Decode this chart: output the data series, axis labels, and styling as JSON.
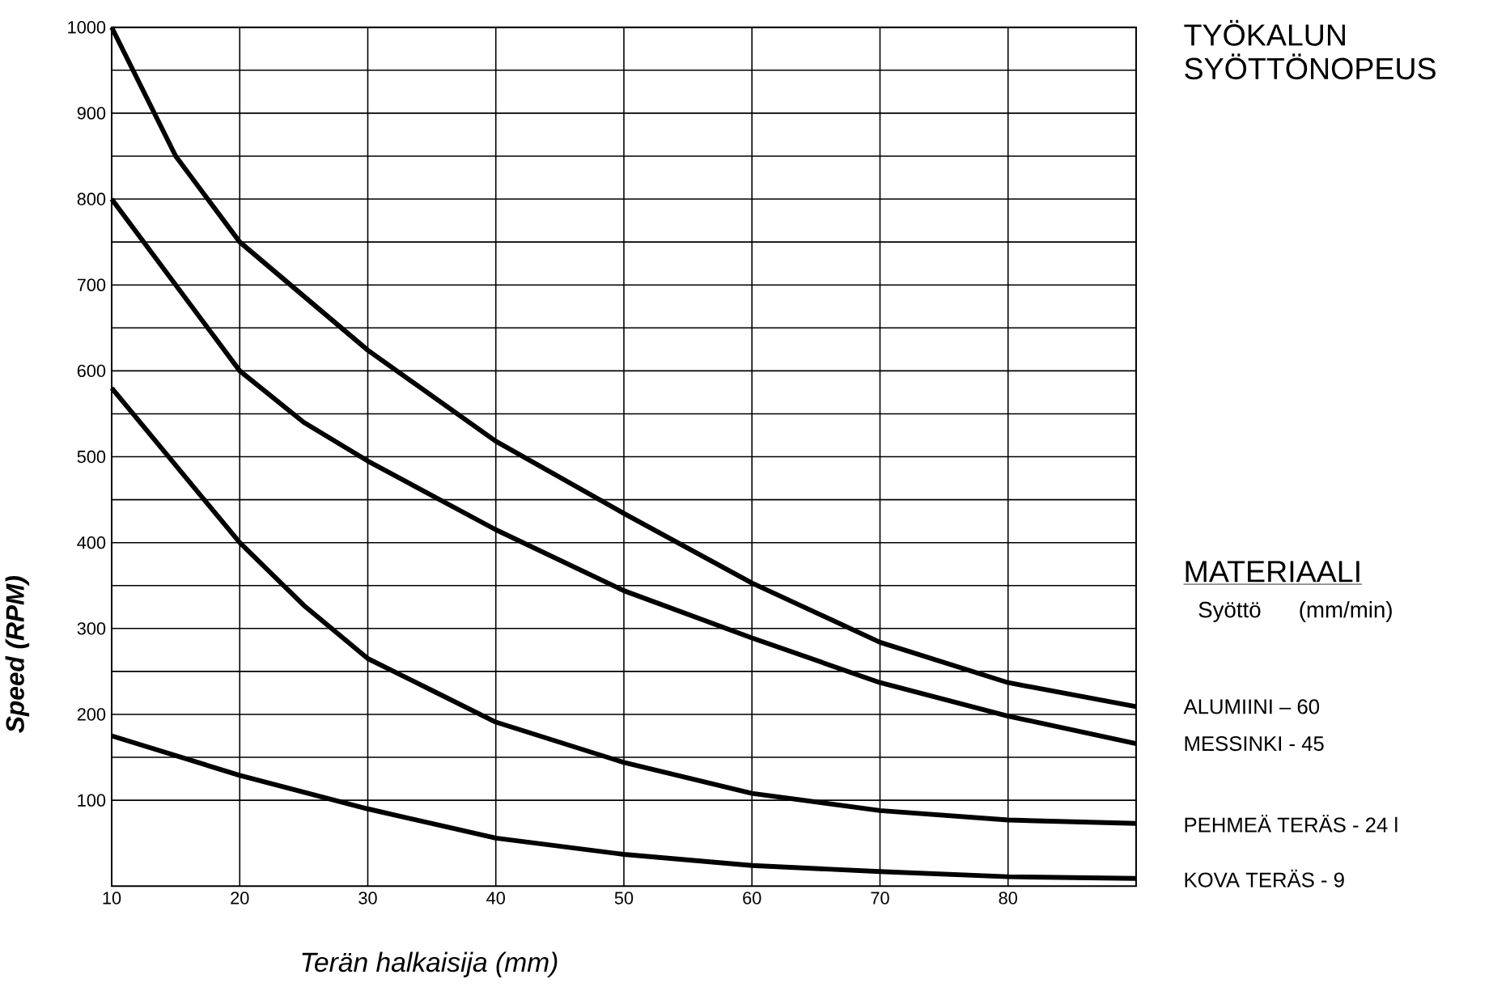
{
  "chart_data": {
    "type": "line",
    "title": "TYÖKALUN SYÖTTÖNOPEUS",
    "legend_title": "MATERIAALI",
    "annotations": [
      "Syöttö      (mm/min)"
    ],
    "xlabel": "Terän halkaisija (mm)",
    "ylabel": "Speed (RPM)",
    "xlim": [
      10,
      90
    ],
    "xticks": [
      10,
      20,
      30,
      40,
      50,
      60,
      70,
      80
    ],
    "ylim": [
      0,
      1000
    ],
    "yticks": [
      100,
      200,
      300,
      400,
      500,
      600,
      700,
      800,
      900,
      1000
    ],
    "grid": true,
    "series": [
      {
        "name": "ALUMIINI – 60",
        "color": "#000000",
        "x": [
          10,
          15,
          20,
          30,
          40,
          50,
          60,
          70,
          80,
          90
        ],
        "values": [
          1000,
          850,
          750,
          624,
          518,
          434,
          353,
          284,
          237,
          209
        ]
      },
      {
        "name": "MESSINKI - 45",
        "color": "#000000",
        "x": [
          10,
          15,
          20,
          25,
          30,
          40,
          50,
          60,
          70,
          80,
          90
        ],
        "values": [
          800,
          700,
          600,
          540,
          495,
          415,
          344,
          289,
          237,
          198,
          166
        ]
      },
      {
        "name": "PEHMEÄ TERÄS - 24 l",
        "color": "#000000",
        "x": [
          10,
          15,
          20,
          25,
          30,
          35,
          40,
          50,
          60,
          70,
          80,
          90
        ],
        "values": [
          580,
          490,
          400,
          327,
          265,
          228,
          191,
          144,
          108,
          88,
          77,
          73
        ]
      },
      {
        "name": "KOVA TERÄS - 9",
        "color": "#000000",
        "x": [
          10,
          20,
          30,
          40,
          50,
          60,
          70,
          80,
          90
        ],
        "values": [
          175,
          129,
          90,
          56,
          37,
          24,
          17,
          11,
          9
        ]
      }
    ]
  }
}
